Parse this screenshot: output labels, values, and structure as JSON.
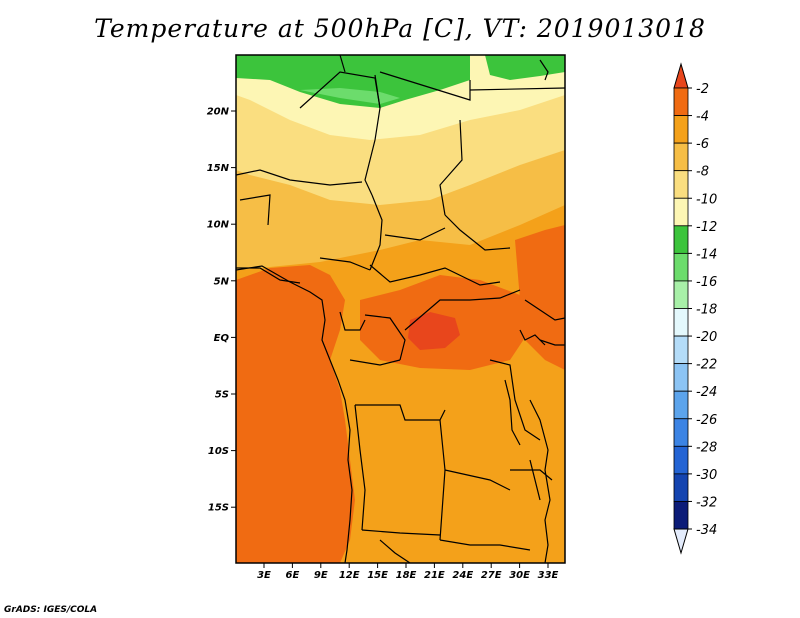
{
  "title": "Temperature at 500hPa [C], VT: 2019013018",
  "credit": "GrADS: IGES/COLA",
  "lat_labels": [
    "20N",
    "15N",
    "10N",
    "5N",
    "EQ",
    "5S",
    "10S",
    "15S"
  ],
  "lon_labels": [
    "3E",
    "6E",
    "9E",
    "12E",
    "15E",
    "18E",
    "21E",
    "24E",
    "27E",
    "30E",
    "33E"
  ],
  "colorbar": {
    "labels": [
      "-2",
      "-4",
      "-6",
      "-8",
      "-10",
      "-12",
      "-14",
      "-16",
      "-18",
      "-20",
      "-22",
      "-24",
      "-26",
      "-28",
      "-30",
      "-32",
      "-34"
    ],
    "colors": [
      "#e8461c",
      "#f06b12",
      "#f4a11a",
      "#f6be46",
      "#fade80",
      "#fdf6b4",
      "#3cc43c",
      "#6cdc6c",
      "#a8f0a8",
      "#e4f8fc",
      "#b4dcf8",
      "#8cc4f4",
      "#5ca4ec",
      "#3c84e4",
      "#2464d4",
      "#1444b0",
      "#0c1c78"
    ],
    "top_arrow_color": "#e8461c",
    "bottom_arrow_color": "#e4ecfc"
  }
}
